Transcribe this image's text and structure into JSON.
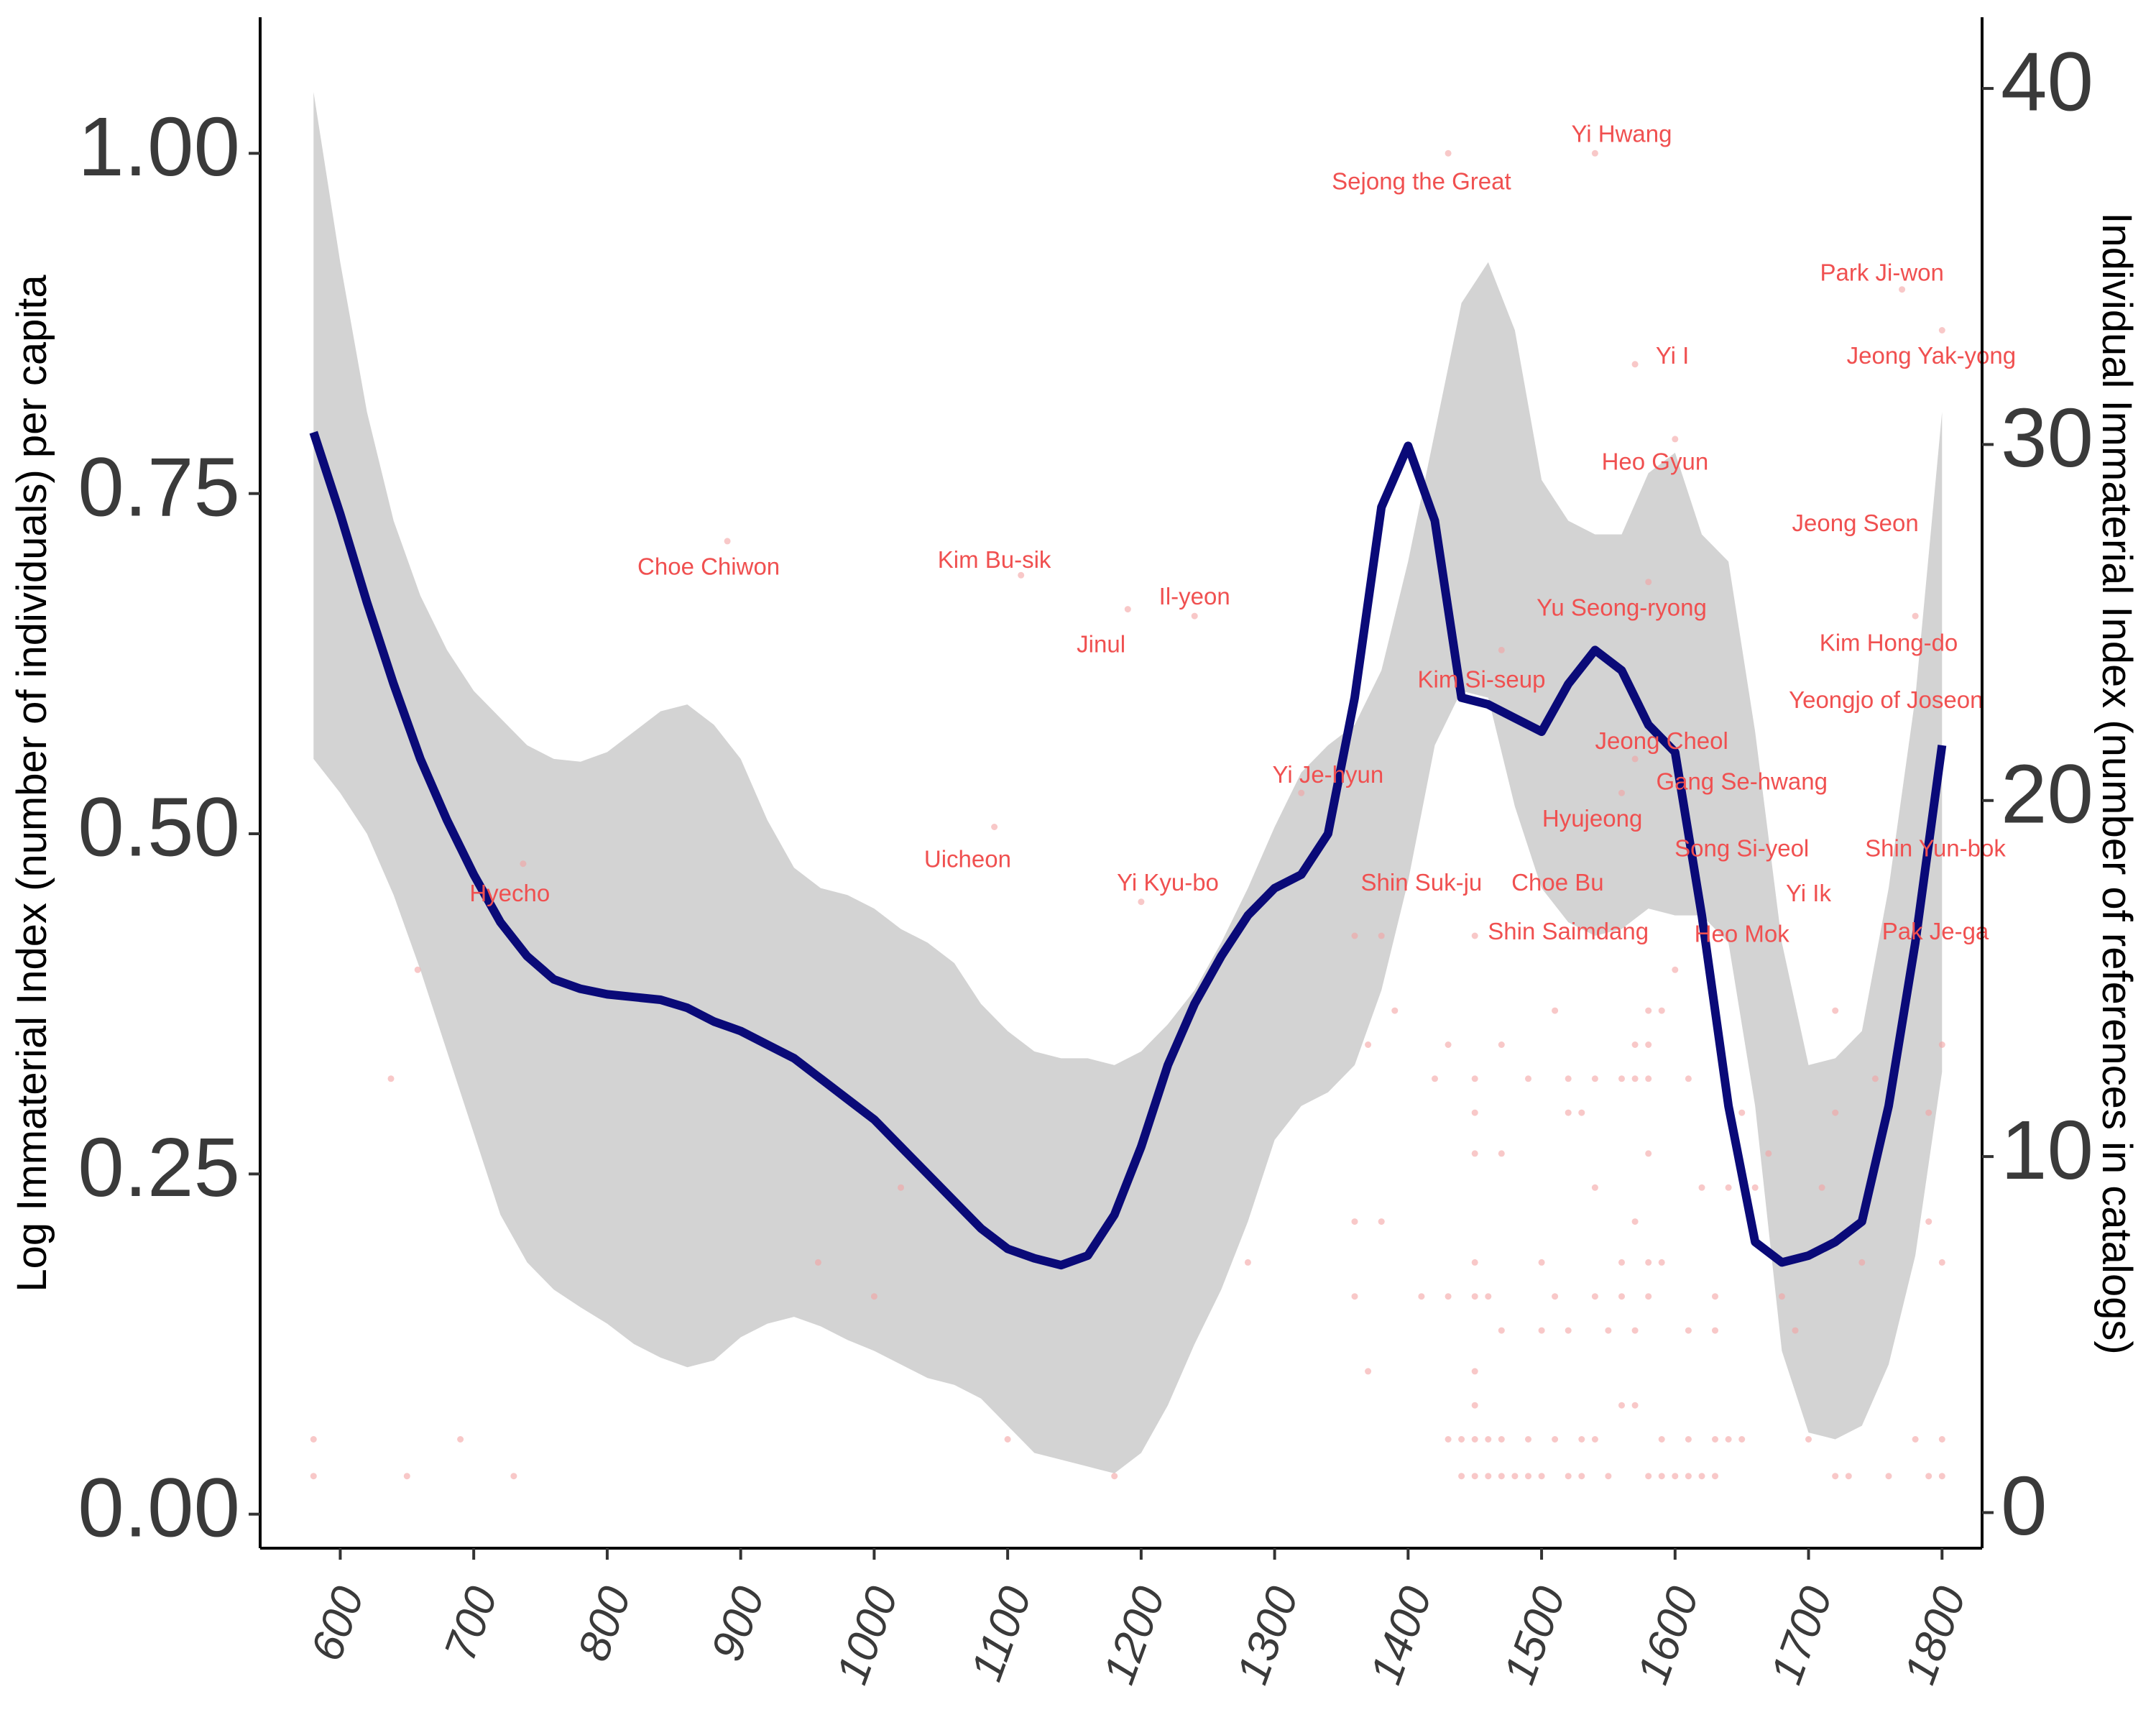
{
  "chart_data": {
    "type": "line",
    "title": "",
    "xlabel": "",
    "ylabel": "Log Immaterial Index (number of individuals) per capita",
    "y2label": "Individual Immaterial Index (number of references in catalogs)",
    "xlim": [
      540,
      1830
    ],
    "ylim": [
      -0.025,
      1.1
    ],
    "y2lim": [
      -1,
      42
    ],
    "x_ticks": [
      600,
      700,
      800,
      900,
      1000,
      1100,
      1200,
      1300,
      1400,
      1500,
      1600,
      1700,
      1800
    ],
    "y_ticks": [
      "0.00",
      "0.25",
      "0.50",
      "0.75",
      "1.00"
    ],
    "y2_ticks": [
      "0",
      "10",
      "20",
      "30",
      "40"
    ],
    "grid": false,
    "colors": {
      "line": "#0a0a78",
      "ribbon": "#d3d3d3",
      "points": "#f3a3a3",
      "annotation": "#f05050"
    },
    "smooth_line": {
      "x": [
        580,
        600,
        620,
        640,
        660,
        680,
        700,
        720,
        740,
        760,
        780,
        800,
        820,
        840,
        860,
        880,
        900,
        920,
        940,
        960,
        980,
        1000,
        1020,
        1040,
        1060,
        1080,
        1100,
        1120,
        1140,
        1160,
        1180,
        1200,
        1220,
        1240,
        1260,
        1280,
        1300,
        1320,
        1340,
        1360,
        1380,
        1400,
        1420,
        1440,
        1460,
        1480,
        1500,
        1520,
        1540,
        1560,
        1580,
        1600,
        1620,
        1640,
        1660,
        1680,
        1700,
        1720,
        1740,
        1760,
        1780,
        1800
      ],
      "y": [
        0.795,
        0.735,
        0.67,
        0.61,
        0.555,
        0.51,
        0.47,
        0.435,
        0.41,
        0.393,
        0.386,
        0.382,
        0.38,
        0.378,
        0.372,
        0.362,
        0.355,
        0.345,
        0.335,
        0.32,
        0.305,
        0.29,
        0.27,
        0.25,
        0.23,
        0.21,
        0.195,
        0.188,
        0.183,
        0.19,
        0.22,
        0.27,
        0.33,
        0.375,
        0.41,
        0.44,
        0.46,
        0.47,
        0.5,
        0.6,
        0.74,
        0.785,
        0.73,
        0.6,
        0.595,
        0.585,
        0.575,
        0.61,
        0.635,
        0.62,
        0.58,
        0.56,
        0.44,
        0.3,
        0.2,
        0.185,
        0.19,
        0.2,
        0.215,
        0.3,
        0.42,
        0.565
      ],
      "note": "n/a"
    },
    "ribbon": {
      "x": [
        580,
        600,
        620,
        640,
        660,
        680,
        700,
        720,
        740,
        760,
        780,
        800,
        820,
        840,
        860,
        880,
        900,
        920,
        940,
        960,
        980,
        1000,
        1020,
        1040,
        1060,
        1080,
        1100,
        1120,
        1140,
        1160,
        1180,
        1200,
        1220,
        1240,
        1260,
        1280,
        1300,
        1320,
        1340,
        1360,
        1380,
        1400,
        1420,
        1440,
        1460,
        1480,
        1500,
        1520,
        1540,
        1560,
        1580,
        1600,
        1620,
        1640,
        1660,
        1680,
        1700,
        1720,
        1740,
        1760,
        1780,
        1800
      ],
      "upper": [
        1.045,
        0.92,
        0.81,
        0.73,
        0.675,
        0.635,
        0.605,
        0.585,
        0.565,
        0.555,
        0.553,
        0.56,
        0.575,
        0.59,
        0.595,
        0.58,
        0.555,
        0.51,
        0.475,
        0.46,
        0.455,
        0.445,
        0.43,
        0.42,
        0.405,
        0.375,
        0.355,
        0.34,
        0.335,
        0.335,
        0.33,
        0.34,
        0.36,
        0.385,
        0.42,
        0.46,
        0.505,
        0.545,
        0.565,
        0.58,
        0.62,
        0.7,
        0.795,
        0.89,
        0.92,
        0.87,
        0.76,
        0.73,
        0.72,
        0.72,
        0.765,
        0.78,
        0.72,
        0.7,
        0.575,
        0.42,
        0.33,
        0.335,
        0.355,
        0.46,
        0.6,
        0.81
      ],
      "lower": [
        0.555,
        0.53,
        0.5,
        0.455,
        0.4,
        0.34,
        0.28,
        0.22,
        0.185,
        0.165,
        0.152,
        0.14,
        0.125,
        0.115,
        0.108,
        0.113,
        0.13,
        0.14,
        0.145,
        0.138,
        0.128,
        0.12,
        0.11,
        0.1,
        0.095,
        0.085,
        0.065,
        0.045,
        0.04,
        0.035,
        0.03,
        0.045,
        0.08,
        0.125,
        0.165,
        0.215,
        0.275,
        0.3,
        0.31,
        0.33,
        0.385,
        0.465,
        0.565,
        0.605,
        0.6,
        0.52,
        0.46,
        0.435,
        0.425,
        0.43,
        0.445,
        0.44,
        0.44,
        0.42,
        0.3,
        0.12,
        0.06,
        0.055,
        0.065,
        0.11,
        0.19,
        0.325
      ]
    },
    "annotations": [
      {
        "label": "Hyecho",
        "x": 727,
        "y": 0.455
      },
      {
        "label": "Choe Chiwon",
        "x": 876,
        "y": 0.695
      },
      {
        "label": "Uicheon",
        "x": 1070,
        "y": 0.48
      },
      {
        "label": "Kim Bu-sik",
        "x": 1090,
        "y": 0.7
      },
      {
        "label": "Jinul",
        "x": 1170,
        "y": 0.638
      },
      {
        "label": "Il-yeon",
        "x": 1240,
        "y": 0.673
      },
      {
        "label": "Yi Kyu-bo",
        "x": 1220,
        "y": 0.463
      },
      {
        "label": "Yi Je-hyun",
        "x": 1340,
        "y": 0.542
      },
      {
        "label": "Shin Suk-ju",
        "x": 1410,
        "y": 0.463
      },
      {
        "label": "Kim Si-seup",
        "x": 1455,
        "y": 0.612
      },
      {
        "label": "Sejong the Great",
        "x": 1410,
        "y": 0.978
      },
      {
        "label": "Yi Hwang",
        "x": 1560,
        "y": 1.013
      },
      {
        "label": "Yu Seong-ryong",
        "x": 1560,
        "y": 0.665
      },
      {
        "label": "Choe Bu",
        "x": 1512,
        "y": 0.463
      },
      {
        "label": "Shin Saimdang",
        "x": 1520,
        "y": 0.427
      },
      {
        "label": "Hyujeong",
        "x": 1538,
        "y": 0.51
      },
      {
        "label": "Jeong Cheol",
        "x": 1590,
        "y": 0.567
      },
      {
        "label": "Yi I",
        "x": 1598,
        "y": 0.85
      },
      {
        "label": "Heo Gyun",
        "x": 1585,
        "y": 0.772
      },
      {
        "label": "Gang Se-hwang",
        "x": 1650,
        "y": 0.537
      },
      {
        "label": "Song Si-yeol",
        "x": 1650,
        "y": 0.488
      },
      {
        "label": "Heo Mok",
        "x": 1650,
        "y": 0.425
      },
      {
        "label": "Yi Ik",
        "x": 1700,
        "y": 0.455
      },
      {
        "label": "Park Ji-won",
        "x": 1755,
        "y": 0.911
      },
      {
        "label": "Jeong Yak-yong",
        "x": 1792,
        "y": 0.85
      },
      {
        "label": "Jeong Seon",
        "x": 1735,
        "y": 0.727
      },
      {
        "label": "Kim Hong-do",
        "x": 1760,
        "y": 0.639
      },
      {
        "label": "Yeongjo of Joseon",
        "x": 1758,
        "y": 0.597
      },
      {
        "label": "Shin Yun-bok",
        "x": 1795,
        "y": 0.488
      },
      {
        "label": "Pak Je-ga",
        "x": 1795,
        "y": 0.427
      }
    ],
    "points": [
      [
        580,
        0.055
      ],
      [
        580,
        0.028
      ],
      [
        638,
        0.32
      ],
      [
        658,
        0.4
      ],
      [
        650,
        0.028
      ],
      [
        690,
        0.055
      ],
      [
        730,
        0.028
      ],
      [
        737,
        0.478
      ],
      [
        890,
        0.715
      ],
      [
        958,
        0.185
      ],
      [
        1000,
        0.16
      ],
      [
        1020,
        0.24
      ],
      [
        1090,
        0.505
      ],
      [
        1100,
        0.055
      ],
      [
        1110,
        0.69
      ],
      [
        1180,
        0.028
      ],
      [
        1190,
        0.665
      ],
      [
        1200,
        0.45
      ],
      [
        1240,
        0.66
      ],
      [
        1280,
        0.185
      ],
      [
        1320,
        0.53
      ],
      [
        1360,
        0.425
      ],
      [
        1360,
        0.215
      ],
      [
        1360,
        0.16
      ],
      [
        1370,
        0.345
      ],
      [
        1370,
        0.105
      ],
      [
        1380,
        0.425
      ],
      [
        1380,
        0.215
      ],
      [
        1390,
        0.37
      ],
      [
        1410,
        0.16
      ],
      [
        1420,
        0.32
      ],
      [
        1430,
        1.0
      ],
      [
        1430,
        0.345
      ],
      [
        1430,
        0.16
      ],
      [
        1430,
        0.055
      ],
      [
        1440,
        0.055
      ],
      [
        1440,
        0.028
      ],
      [
        1450,
        0.425
      ],
      [
        1450,
        0.32
      ],
      [
        1450,
        0.295
      ],
      [
        1450,
        0.265
      ],
      [
        1450,
        0.185
      ],
      [
        1450,
        0.16
      ],
      [
        1450,
        0.105
      ],
      [
        1450,
        0.08
      ],
      [
        1450,
        0.055
      ],
      [
        1450,
        0.028
      ],
      [
        1460,
        0.16
      ],
      [
        1460,
        0.055
      ],
      [
        1460,
        0.028
      ],
      [
        1470,
        0.635
      ],
      [
        1470,
        0.345
      ],
      [
        1470,
        0.265
      ],
      [
        1470,
        0.135
      ],
      [
        1470,
        0.055
      ],
      [
        1470,
        0.028
      ],
      [
        1480,
        0.028
      ],
      [
        1490,
        0.32
      ],
      [
        1490,
        0.055
      ],
      [
        1490,
        0.028
      ],
      [
        1500,
        0.185
      ],
      [
        1500,
        0.135
      ],
      [
        1500,
        0.028
      ],
      [
        1510,
        0.37
      ],
      [
        1510,
        0.16
      ],
      [
        1510,
        0.055
      ],
      [
        1520,
        0.32
      ],
      [
        1520,
        0.295
      ],
      [
        1520,
        0.135
      ],
      [
        1520,
        0.028
      ],
      [
        1530,
        0.295
      ],
      [
        1530,
        0.055
      ],
      [
        1530,
        0.028
      ],
      [
        1540,
        1.0
      ],
      [
        1540,
        0.32
      ],
      [
        1540,
        0.24
      ],
      [
        1540,
        0.16
      ],
      [
        1540,
        0.055
      ],
      [
        1550,
        0.135
      ],
      [
        1550,
        0.028
      ],
      [
        1560,
        0.53
      ],
      [
        1560,
        0.32
      ],
      [
        1560,
        0.185
      ],
      [
        1560,
        0.16
      ],
      [
        1560,
        0.08
      ],
      [
        1570,
        0.845
      ],
      [
        1570,
        0.555
      ],
      [
        1570,
        0.345
      ],
      [
        1570,
        0.32
      ],
      [
        1570,
        0.215
      ],
      [
        1570,
        0.135
      ],
      [
        1570,
        0.08
      ],
      [
        1580,
        0.685
      ],
      [
        1580,
        0.37
      ],
      [
        1580,
        0.345
      ],
      [
        1580,
        0.32
      ],
      [
        1580,
        0.265
      ],
      [
        1580,
        0.185
      ],
      [
        1580,
        0.16
      ],
      [
        1580,
        0.028
      ],
      [
        1590,
        0.37
      ],
      [
        1590,
        0.185
      ],
      [
        1590,
        0.055
      ],
      [
        1590,
        0.028
      ],
      [
        1600,
        0.79
      ],
      [
        1600,
        0.4
      ],
      [
        1600,
        0.028
      ],
      [
        1610,
        0.32
      ],
      [
        1610,
        0.135
      ],
      [
        1610,
        0.055
      ],
      [
        1610,
        0.028
      ],
      [
        1620,
        0.24
      ],
      [
        1620,
        0.028
      ],
      [
        1630,
        0.16
      ],
      [
        1630,
        0.135
      ],
      [
        1630,
        0.055
      ],
      [
        1630,
        0.028
      ],
      [
        1640,
        0.24
      ],
      [
        1640,
        0.055
      ],
      [
        1650,
        0.295
      ],
      [
        1650,
        0.055
      ],
      [
        1660,
        0.24
      ],
      [
        1670,
        0.265
      ],
      [
        1680,
        0.16
      ],
      [
        1690,
        0.135
      ],
      [
        1700,
        0.055
      ],
      [
        1710,
        0.24
      ],
      [
        1720,
        0.37
      ],
      [
        1720,
        0.295
      ],
      [
        1720,
        0.028
      ],
      [
        1730,
        0.028
      ],
      [
        1740,
        0.185
      ],
      [
        1750,
        0.32
      ],
      [
        1760,
        0.028
      ],
      [
        1770,
        0.9
      ],
      [
        1780,
        0.66
      ],
      [
        1780,
        0.055
      ],
      [
        1790,
        0.295
      ],
      [
        1790,
        0.215
      ],
      [
        1790,
        0.028
      ],
      [
        1800,
        0.87
      ],
      [
        1800,
        0.185
      ],
      [
        1800,
        0.055
      ],
      [
        1800,
        0.345
      ],
      [
        1800,
        0.028
      ]
    ]
  }
}
